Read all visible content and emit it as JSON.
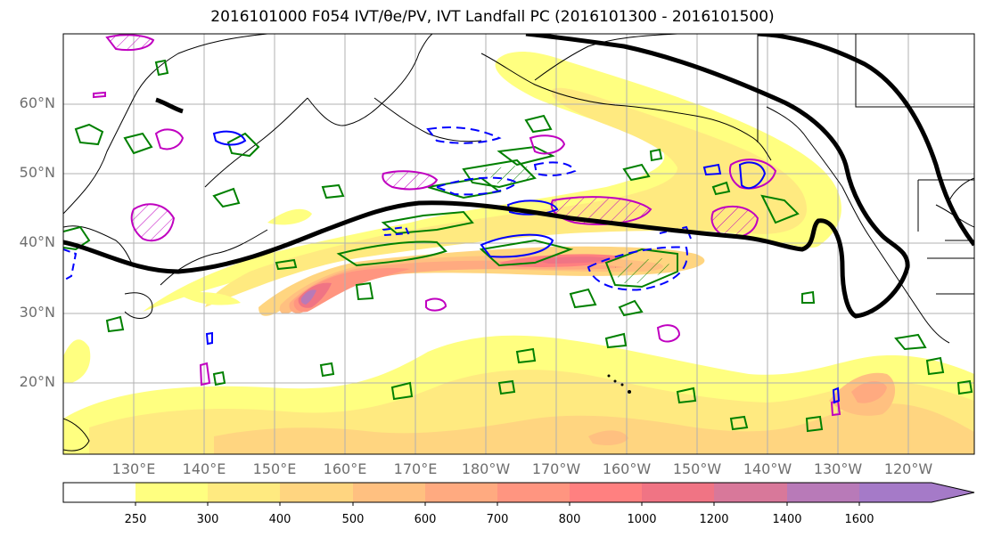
{
  "title": "2016101000 F054 IVT/θe/PV, IVT Landfall PC (2016101300 - 2016101500)",
  "latitude_labels": [
    "60°N",
    "50°N",
    "40°N",
    "30°N",
    "20°N"
  ],
  "longitude_labels": [
    "130°E",
    "140°E",
    "150°E",
    "160°E",
    "170°E",
    "180°W",
    "170°W",
    "160°W",
    "150°W",
    "140°W",
    "130°W",
    "120°W"
  ],
  "colorbar": {
    "levels": [
      "250",
      "300",
      "400",
      "500",
      "600",
      "700",
      "800",
      "1000",
      "1200",
      "1400",
      "1600"
    ],
    "colors": [
      "#ffffff",
      "#ffff80",
      "#ffea80",
      "#ffd580",
      "#ffc080",
      "#ffaa80",
      "#ff9580",
      "#ff8080",
      "#f07484",
      "#d8789a",
      "#b87ab8",
      "#a57ac8"
    ]
  },
  "legend_colors": {
    "pv": "#008000",
    "theta_e": "#c000c0",
    "negative": "#0000ff",
    "pc_contour": "#000000"
  }
}
